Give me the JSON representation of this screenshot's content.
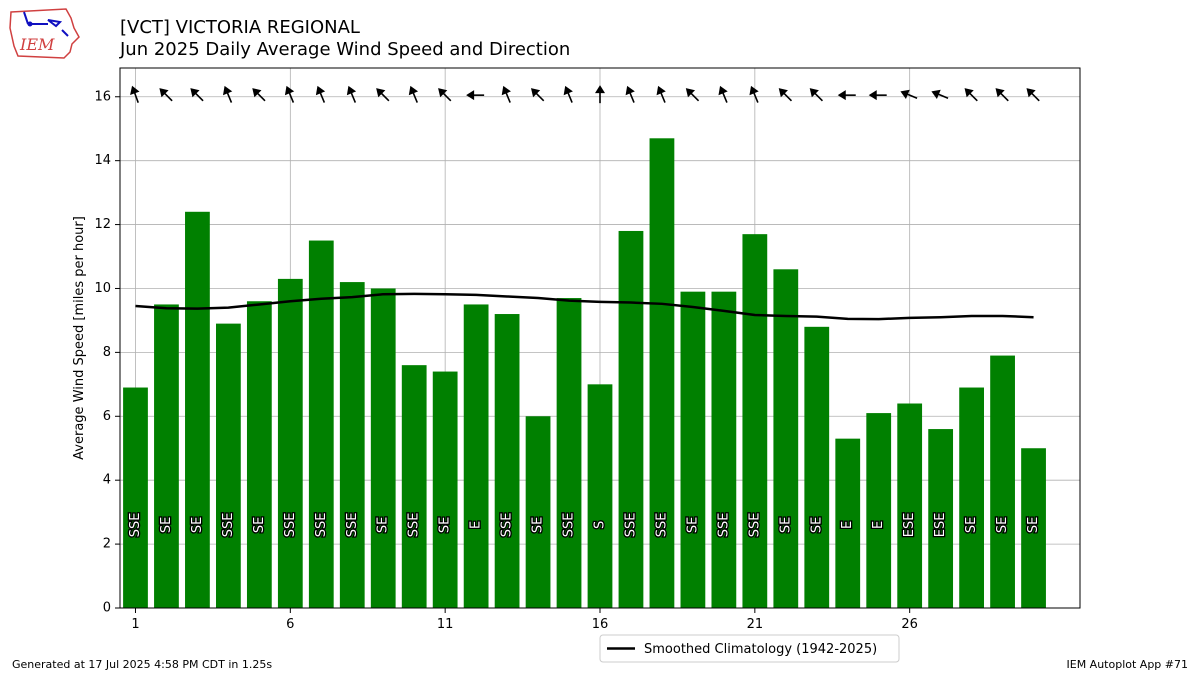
{
  "header": {
    "title": "[VCT] VICTORIA REGIONAL",
    "subtitle": "Jun 2025 Daily Average Wind Speed and Direction"
  },
  "logo": {
    "text": "IEM"
  },
  "footer": {
    "generated": "Generated at 17 Jul 2025 4:58 PM CDT in 1.25s",
    "app": "IEM Autoplot App #71"
  },
  "colors": {
    "bar": "#008000",
    "climatology": "#000000",
    "grid": "#b0b0b0"
  },
  "chart_data": {
    "type": "bar",
    "title": "[VCT] VICTORIA REGIONAL",
    "subtitle": "Jun 2025 Daily Average Wind Speed and Direction",
    "ylabel": "Average Wind Speed [miles per hour]",
    "xlabel": "",
    "ylim": [
      0,
      16.9
    ],
    "xlim": [
      0.5,
      31.5
    ],
    "xticks": [
      1,
      6,
      11,
      16,
      21,
      26
    ],
    "yticks": [
      0,
      2,
      4,
      6,
      8,
      10,
      12,
      14,
      16
    ],
    "grid": true,
    "legend_position": "bottom-center, below axes",
    "days": [
      1,
      2,
      3,
      4,
      5,
      6,
      7,
      8,
      9,
      10,
      11,
      12,
      13,
      14,
      15,
      16,
      17,
      18,
      19,
      20,
      21,
      22,
      23,
      24,
      25,
      26,
      27,
      28,
      29,
      30
    ],
    "series": [
      {
        "name": "",
        "type": "bar",
        "values": [
          6.9,
          9.5,
          12.4,
          8.9,
          9.6,
          10.3,
          11.5,
          10.2,
          10.0,
          7.6,
          7.4,
          9.5,
          9.2,
          6.0,
          9.7,
          7.0,
          11.8,
          14.7,
          9.9,
          9.9,
          11.7,
          10.6,
          8.8,
          5.3,
          6.1,
          6.4,
          5.6,
          6.9,
          7.9,
          5.0
        ],
        "direction_labels": [
          "SSE",
          "SE",
          "SE",
          "SSE",
          "SE",
          "SSE",
          "SSE",
          "SSE",
          "SE",
          "SSE",
          "SE",
          "E",
          "SSE",
          "SE",
          "SSE",
          "S",
          "SSE",
          "SSE",
          "SE",
          "SSE",
          "SSE",
          "SE",
          "SE",
          "E",
          "E",
          "ESE",
          "ESE",
          "SE",
          "SE",
          "SE"
        ]
      },
      {
        "name": "Smoothed Climatology (1942-2025)",
        "type": "line",
        "values": [
          9.45,
          9.38,
          9.37,
          9.4,
          9.5,
          9.6,
          9.68,
          9.73,
          9.82,
          9.83,
          9.82,
          9.8,
          9.75,
          9.7,
          9.62,
          9.58,
          9.56,
          9.52,
          9.42,
          9.3,
          9.17,
          9.14,
          9.12,
          9.05,
          9.04,
          9.08,
          9.1,
          9.14,
          9.14,
          9.1
        ]
      }
    ],
    "arrow_directions_deg": [
      160,
      135,
      135,
      157.5,
      135,
      157.5,
      157.5,
      157.5,
      135,
      157.5,
      135,
      90,
      157.5,
      135,
      157.5,
      180,
      157.5,
      157.5,
      135,
      157.5,
      157.5,
      135,
      135,
      90,
      90,
      112.5,
      112.5,
      135,
      135,
      135
    ]
  }
}
